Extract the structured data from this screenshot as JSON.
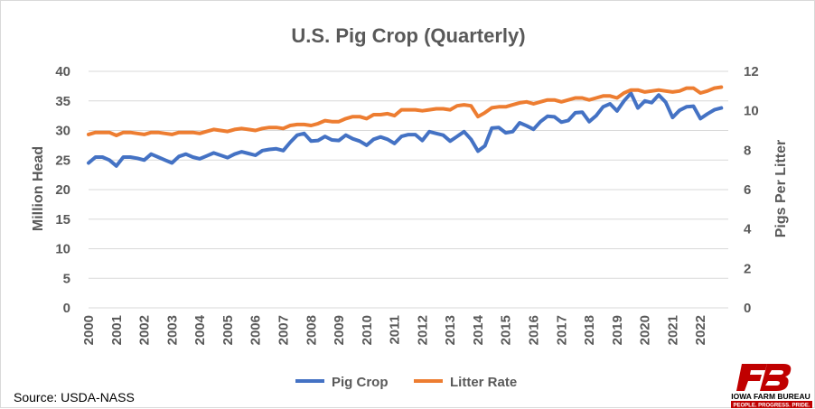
{
  "chart_data": {
    "type": "line",
    "title": "U.S. Pig Crop (Quarterly)",
    "ylabel": "Million Head",
    "y2label": "Pigs Per Litter",
    "ylim": [
      0,
      40
    ],
    "y2lim": [
      0,
      12
    ],
    "y_ticks": [
      "0",
      "5",
      "10",
      "15",
      "20",
      "25",
      "30",
      "35",
      "40"
    ],
    "y2_ticks": [
      "0",
      "2",
      "4",
      "6",
      "8",
      "10",
      "12"
    ],
    "x_ticks": [
      "2000",
      "2001",
      "2002",
      "2003",
      "2004",
      "2005",
      "2006",
      "2007",
      "2008",
      "2009",
      "2010",
      "2011",
      "2012",
      "2013",
      "2014",
      "2015",
      "2016",
      "2017",
      "2018",
      "2019",
      "2020",
      "2021",
      "2022"
    ],
    "grid": true,
    "legend": "bottom",
    "x": [
      2000.0,
      2000.25,
      2000.5,
      2000.75,
      2001.0,
      2001.25,
      2001.5,
      2001.75,
      2002.0,
      2002.25,
      2002.5,
      2002.75,
      2003.0,
      2003.25,
      2003.5,
      2003.75,
      2004.0,
      2004.25,
      2004.5,
      2004.75,
      2005.0,
      2005.25,
      2005.5,
      2005.75,
      2006.0,
      2006.25,
      2006.5,
      2006.75,
      2007.0,
      2007.25,
      2007.5,
      2007.75,
      2008.0,
      2008.25,
      2008.5,
      2008.75,
      2009.0,
      2009.25,
      2009.5,
      2009.75,
      2010.0,
      2010.25,
      2010.5,
      2010.75,
      2011.0,
      2011.25,
      2011.5,
      2011.75,
      2012.0,
      2012.25,
      2012.5,
      2012.75,
      2013.0,
      2013.25,
      2013.5,
      2013.75,
      2014.0,
      2014.25,
      2014.5,
      2014.75,
      2015.0,
      2015.25,
      2015.5,
      2015.75,
      2016.0,
      2016.25,
      2016.5,
      2016.75,
      2017.0,
      2017.25,
      2017.5,
      2017.75,
      2018.0,
      2018.25,
      2018.5,
      2018.75,
      2019.0,
      2019.25,
      2019.5,
      2019.75,
      2020.0,
      2020.25,
      2020.5,
      2020.75,
      2021.0,
      2021.25,
      2021.5,
      2021.75,
      2022.0,
      2022.25,
      2022.5,
      2022.75
    ],
    "series": [
      {
        "name": "Pig Crop",
        "axis": "left",
        "color": "#4472c4",
        "values": [
          24.5,
          25.5,
          25.5,
          25.0,
          24.0,
          25.5,
          25.5,
          25.3,
          25.0,
          26.0,
          25.5,
          25.0,
          24.5,
          25.6,
          26.0,
          25.5,
          25.2,
          25.7,
          26.2,
          25.8,
          25.4,
          26.0,
          26.4,
          26.1,
          25.8,
          26.6,
          26.8,
          26.9,
          26.6,
          28.0,
          29.2,
          29.5,
          28.2,
          28.3,
          29.0,
          28.4,
          28.3,
          29.2,
          28.6,
          28.2,
          27.5,
          28.5,
          28.9,
          28.5,
          27.8,
          29.0,
          29.3,
          29.3,
          28.3,
          29.8,
          29.5,
          29.2,
          28.2,
          29.0,
          29.8,
          28.5,
          26.5,
          27.4,
          30.4,
          30.5,
          29.6,
          29.8,
          31.3,
          30.8,
          30.2,
          31.5,
          32.4,
          32.3,
          31.4,
          31.7,
          33.0,
          33.1,
          31.5,
          32.5,
          34.0,
          34.5,
          33.3,
          35.0,
          36.3,
          33.8,
          35.0,
          34.7,
          36.0,
          34.8,
          32.2,
          33.4,
          34.0,
          34.1,
          32.0,
          32.8,
          33.5,
          33.8
        ]
      },
      {
        "name": "Litter Rate",
        "axis": "right",
        "color": "#ed7d31",
        "values": [
          8.8,
          8.9,
          8.9,
          8.9,
          8.75,
          8.9,
          8.9,
          8.85,
          8.8,
          8.9,
          8.9,
          8.85,
          8.8,
          8.9,
          8.9,
          8.9,
          8.85,
          8.95,
          9.05,
          9.0,
          8.95,
          9.05,
          9.1,
          9.05,
          9.0,
          9.1,
          9.15,
          9.15,
          9.1,
          9.25,
          9.3,
          9.3,
          9.25,
          9.35,
          9.5,
          9.45,
          9.45,
          9.6,
          9.7,
          9.7,
          9.6,
          9.8,
          9.8,
          9.85,
          9.75,
          10.05,
          10.05,
          10.05,
          10.0,
          10.05,
          10.1,
          10.1,
          10.05,
          10.25,
          10.3,
          10.25,
          9.7,
          9.9,
          10.15,
          10.2,
          10.2,
          10.3,
          10.4,
          10.45,
          10.35,
          10.45,
          10.55,
          10.55,
          10.45,
          10.55,
          10.65,
          10.65,
          10.55,
          10.65,
          10.75,
          10.75,
          10.65,
          10.9,
          11.05,
          11.05,
          10.95,
          11.0,
          11.05,
          11.0,
          10.95,
          11.0,
          11.15,
          11.15,
          10.9,
          11.0,
          11.15,
          11.2
        ]
      }
    ]
  },
  "source": "Source: USDA-NASS",
  "logo": {
    "name": "IOWA FARM BUREAU",
    "tagline": "PEOPLE. PROGRESS. PRIDE.",
    "color": "#c00000"
  }
}
